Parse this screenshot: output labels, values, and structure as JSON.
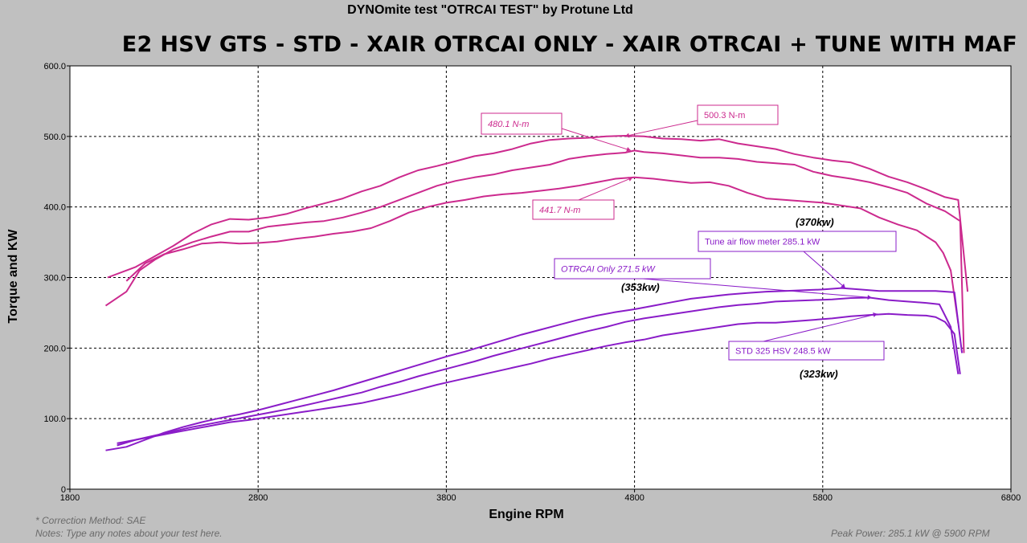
{
  "header": {
    "test_title": "DYNOmite test \"OTRCAI TEST\" by Protune Ltd"
  },
  "footer": {
    "correction": "* Correction Method: SAE",
    "notes": "Notes: Type any notes about your test here.",
    "peak_power": "Peak Power: 285.1 kW @ 5900 RPM"
  },
  "chart_data": {
    "type": "line",
    "title": "E2 HSV GTS - STD - XAIR OTRCAI ONLY - XAIR OTRCAI + TUNE WITH MAF",
    "xlabel": "Engine RPM",
    "ylabel": "Torque and KW",
    "xlim": [
      1800,
      6800
    ],
    "ylim": [
      0,
      600
    ],
    "x_ticks": [
      "1800",
      "2800",
      "3800",
      "4800",
      "5800",
      "6800"
    ],
    "y_ticks": [
      "0",
      "100.0",
      "200.0",
      "300.0",
      "400.0",
      "500.0",
      "600.0"
    ],
    "grid": true,
    "legend": "none",
    "colors": {
      "torque": "#cc2a8e",
      "power": "#8a1cc8",
      "plot_bg": "#ffffff",
      "page_bg": "#c0c0c0"
    },
    "series": [
      {
        "group": "torque",
        "x": [
          2000,
          2100,
          2150,
          2250,
          2350,
          2450,
          2550,
          2650,
          2750,
          2850,
          2950,
          3050,
          3150,
          3250,
          3350,
          3450,
          3550,
          3650,
          3750,
          3850,
          3950,
          4050,
          4150,
          4250,
          4350,
          4450,
          4550,
          4650,
          4750,
          4850,
          4950,
          5050,
          5150,
          5250,
          5350,
          5450,
          5550,
          5650,
          5750,
          5850,
          5950,
          6050,
          6150,
          6250,
          6350,
          6450,
          6520,
          6570
        ],
        "y": [
          300,
          310,
          315,
          330,
          345,
          362,
          375,
          383,
          382,
          385,
          390,
          398,
          405,
          412,
          422,
          430,
          442,
          452,
          458,
          465,
          472,
          476,
          482,
          490,
          495,
          497,
          498,
          500,
          501,
          500,
          497,
          496,
          494,
          496,
          490,
          486,
          482,
          475,
          470,
          466,
          463,
          454,
          443,
          435,
          425,
          414,
          410,
          280
        ]
      },
      {
        "group": "torque",
        "x": [
          1990,
          2100,
          2170,
          2250,
          2350,
          2450,
          2550,
          2650,
          2750,
          2850,
          2950,
          3050,
          3150,
          3250,
          3350,
          3450,
          3550,
          3650,
          3750,
          3850,
          3950,
          4050,
          4150,
          4250,
          4350,
          4450,
          4550,
          4650,
          4750,
          4800,
          4850,
          4950,
          5050,
          5150,
          5250,
          5350,
          5450,
          5550,
          5650,
          5750,
          5850,
          5950,
          6050,
          6150,
          6250,
          6350,
          6450,
          6530,
          6550
        ],
        "y": [
          260,
          280,
          310,
          325,
          340,
          350,
          358,
          365,
          365,
          372,
          375,
          378,
          380,
          385,
          392,
          400,
          410,
          420,
          430,
          437,
          442,
          446,
          452,
          456,
          460,
          468,
          472,
          475,
          477,
          480,
          478,
          476,
          473,
          470,
          470,
          468,
          464,
          462,
          460,
          450,
          444,
          440,
          435,
          428,
          420,
          405,
          394,
          380,
          193
        ]
      },
      {
        "group": "torque",
        "x": [
          2100,
          2200,
          2300,
          2400,
          2500,
          2600,
          2700,
          2800,
          2900,
          3000,
          3100,
          3200,
          3300,
          3400,
          3500,
          3600,
          3700,
          3800,
          3900,
          4000,
          4100,
          4200,
          4300,
          4400,
          4500,
          4600,
          4700,
          4800,
          4900,
          5000,
          5100,
          5200,
          5300,
          5400,
          5500,
          5600,
          5700,
          5800,
          5900,
          6000,
          6100,
          6200,
          6300,
          6400,
          6440,
          6480,
          6520
        ],
        "y": [
          295,
          320,
          333,
          340,
          348,
          350,
          348,
          349,
          351,
          355,
          358,
          362,
          365,
          370,
          380,
          392,
          400,
          406,
          410,
          415,
          418,
          420,
          423,
          426,
          430,
          435,
          440,
          442,
          440,
          437,
          434,
          435,
          430,
          420,
          412,
          410,
          408,
          406,
          402,
          398,
          385,
          375,
          367,
          350,
          335,
          310,
          235
        ]
      },
      {
        "group": "power",
        "name": "Tune air flow meter 285.1 kW",
        "x": [
          1990,
          2100,
          2200,
          2300,
          2400,
          2500,
          2600,
          2700,
          2800,
          2900,
          3000,
          3100,
          3200,
          3300,
          3400,
          3500,
          3600,
          3700,
          3800,
          3900,
          4000,
          4100,
          4200,
          4300,
          4400,
          4500,
          4600,
          4700,
          4800,
          4900,
          5000,
          5100,
          5200,
          5300,
          5400,
          5500,
          5600,
          5700,
          5800,
          5900,
          6000,
          6100,
          6200,
          6300,
          6400,
          6500,
          6540
        ],
        "y": [
          55,
          60,
          70,
          80,
          88,
          95,
          101,
          106,
          112,
          119,
          126,
          133,
          140,
          148,
          156,
          164,
          172,
          180,
          188,
          195,
          203,
          211,
          219,
          226,
          233,
          240,
          246,
          251,
          255,
          260,
          265,
          270,
          273,
          276,
          278,
          280,
          281,
          282,
          283,
          285.1,
          283,
          281,
          281,
          281,
          281,
          279,
          193
        ]
      },
      {
        "group": "power",
        "name": "OTRCAI Only 271.5 kW",
        "x": [
          2050,
          2150,
          2250,
          2350,
          2450,
          2550,
          2650,
          2750,
          2850,
          2950,
          3050,
          3150,
          3250,
          3350,
          3450,
          3550,
          3650,
          3750,
          3850,
          3950,
          4050,
          4150,
          4250,
          4350,
          4450,
          4550,
          4650,
          4750,
          4850,
          4950,
          5050,
          5150,
          5250,
          5350,
          5450,
          5550,
          5650,
          5750,
          5850,
          5950,
          6050,
          6150,
          6250,
          6350,
          6420,
          6480,
          6520
        ],
        "y": [
          62,
          70,
          76,
          82,
          88,
          93,
          98,
          103,
          108,
          113,
          119,
          125,
          131,
          137,
          145,
          152,
          160,
          167,
          174,
          181,
          189,
          196,
          203,
          210,
          217,
          224,
          230,
          237,
          242,
          246,
          250,
          254,
          258,
          261,
          263,
          266,
          267,
          268,
          269,
          271,
          271.5,
          268,
          266,
          264,
          262,
          230,
          163
        ]
      },
      {
        "group": "power",
        "name": "STD 325 HSV 248.5 kW",
        "x": [
          2050,
          2150,
          2250,
          2350,
          2450,
          2550,
          2650,
          2750,
          2850,
          2950,
          3050,
          3150,
          3250,
          3350,
          3450,
          3550,
          3650,
          3750,
          3850,
          3950,
          4050,
          4150,
          4250,
          4350,
          4450,
          4550,
          4650,
          4750,
          4850,
          4950,
          5050,
          5150,
          5250,
          5350,
          5450,
          5550,
          5650,
          5750,
          5850,
          5950,
          6050,
          6150,
          6250,
          6350,
          6400,
          6450,
          6500,
          6530
        ],
        "y": [
          65,
          70,
          75,
          80,
          85,
          90,
          95,
          98,
          102,
          106,
          110,
          114,
          118,
          122,
          128,
          134,
          141,
          148,
          154,
          160,
          166,
          172,
          178,
          185,
          191,
          197,
          203,
          208,
          212,
          218,
          222,
          226,
          230,
          234,
          236,
          236,
          238,
          240,
          242,
          245,
          247,
          248.5,
          247,
          246,
          244,
          237,
          220,
          163
        ]
      }
    ],
    "annotations": [
      {
        "text": "480.1 N-m",
        "x": 4780,
        "y": 480.1,
        "group": "torque"
      },
      {
        "text": "500.3 N-m",
        "x": 4750,
        "y": 500.3,
        "group": "torque"
      },
      {
        "text": "441.7 N-m",
        "x": 4790,
        "y": 441.7,
        "group": "torque"
      },
      {
        "text": "(370kw)"
      },
      {
        "text": "Tune air flow meter 285.1 kW",
        "x": 5920,
        "y": 285.1,
        "group": "power"
      },
      {
        "text": "OTRCAI Only 271.5 kW",
        "x": 6060,
        "y": 271.5,
        "group": "power"
      },
      {
        "text": "(353kw)"
      },
      {
        "text": "STD 325 HSV 248.5 kW",
        "x": 6090,
        "y": 248.5,
        "group": "power"
      },
      {
        "text": "(323kw)"
      }
    ]
  }
}
